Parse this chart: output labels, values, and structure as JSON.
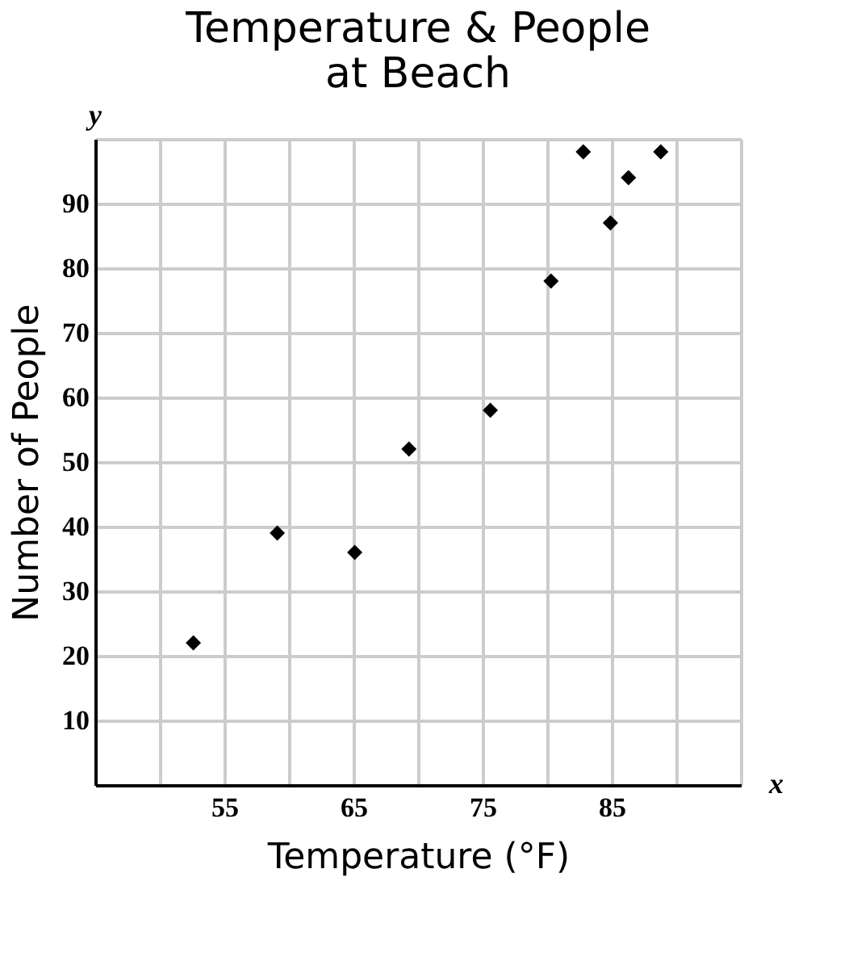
{
  "chart_data": {
    "type": "scatter",
    "title": "Temperature & People at Beach",
    "xlabel": "Temperature (°F)",
    "ylabel": "Number of People",
    "x": [
      52.6,
      59.1,
      65.1,
      69.3,
      75.6,
      80.3,
      82.8,
      84.9,
      86.3,
      88.8
    ],
    "values": [
      22,
      39,
      36,
      52,
      58,
      78,
      98,
      87,
      94,
      98
    ],
    "color": "#000000",
    "marker": "diamond",
    "grid": true,
    "xlim": [
      45,
      95
    ],
    "xticks": [
      {
        "value": 50,
        "label": null
      },
      55,
      {
        "value": 60,
        "label": null
      },
      65,
      {
        "value": 70,
        "label": null
      },
      75,
      {
        "value": 80,
        "label": null
      },
      85,
      {
        "value": 90,
        "label": null
      },
      {
        "value": 95,
        "label": null
      }
    ],
    "ylim": [
      0,
      100
    ],
    "yticks": [
      10,
      20,
      30,
      40,
      50,
      60,
      70,
      80,
      90,
      {
        "value": 100,
        "label": null
      }
    ],
    "annotations": [
      "y",
      "x"
    ]
  }
}
